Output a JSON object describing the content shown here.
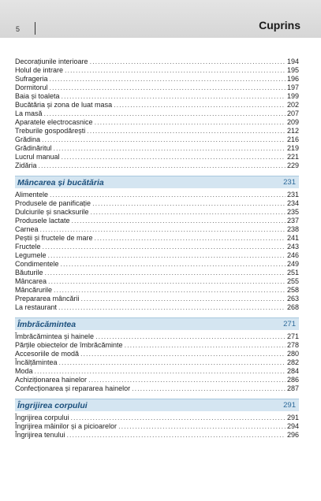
{
  "header": {
    "page_number": "5",
    "title": "Cuprins"
  },
  "groups": [
    {
      "section": null,
      "entries": [
        {
          "label": "Decorațiunile interioare",
          "page": "194"
        },
        {
          "label": "Holul de intrare",
          "page": "195"
        },
        {
          "label": "Sufrageria",
          "page": "196"
        },
        {
          "label": "Dormitorul",
          "page": "197"
        },
        {
          "label": "Baia și toaleta",
          "page": "199"
        },
        {
          "label": "Bucătăria și zona de luat masa",
          "page": "202"
        },
        {
          "label": "La masă",
          "page": "207"
        },
        {
          "label": "Aparatele electrocasnice",
          "page": "209"
        },
        {
          "label": "Treburile gospodărești",
          "page": "212"
        },
        {
          "label": "Grădina",
          "page": "216"
        },
        {
          "label": "Grădinăritul",
          "page": "219"
        },
        {
          "label": "Lucrul manual",
          "page": "221"
        },
        {
          "label": "Zidăria",
          "page": "229"
        }
      ]
    },
    {
      "section": {
        "title": "Mâncarea și bucătăria",
        "page": "231"
      },
      "entries": [
        {
          "label": "Alimentele",
          "page": "231"
        },
        {
          "label": "Produsele de panificație",
          "page": "234"
        },
        {
          "label": "Dulciurile și snacksurile",
          "page": "235"
        },
        {
          "label": "Produsele lactate",
          "page": "237"
        },
        {
          "label": "Carnea",
          "page": "238"
        },
        {
          "label": "Peștii și fructele de mare",
          "page": "241"
        },
        {
          "label": "Fructele",
          "page": "243"
        },
        {
          "label": "Legumele",
          "page": "246"
        },
        {
          "label": "Condimentele",
          "page": "249"
        },
        {
          "label": "Băuturile",
          "page": "251"
        },
        {
          "label": "Mâncarea",
          "page": "255"
        },
        {
          "label": "Mâncărurile",
          "page": "258"
        },
        {
          "label": "Prepararea mâncării",
          "page": "263"
        },
        {
          "label": "La restaurant",
          "page": "268"
        }
      ]
    },
    {
      "section": {
        "title": "Îmbrăcămintea",
        "page": "271"
      },
      "entries": [
        {
          "label": "Îmbrăcămintea și hainele",
          "page": "271"
        },
        {
          "label": "Părțile obiectelor de îmbrăcăminte",
          "page": "278"
        },
        {
          "label": "Accesoriile de modă",
          "page": "280"
        },
        {
          "label": "Încălțămintea",
          "page": "282"
        },
        {
          "label": "Moda",
          "page": "284"
        },
        {
          "label": "Achiziționarea hainelor",
          "page": "286"
        },
        {
          "label": "Confecționarea și repararea hainelor",
          "page": "287"
        }
      ]
    },
    {
      "section": {
        "title": "Îngrijirea corpului",
        "page": "291"
      },
      "entries": [
        {
          "label": "Îngrijirea corpului",
          "page": "291"
        },
        {
          "label": "Îngrijirea mâinilor și a picioarelor",
          "page": "294"
        },
        {
          "label": "Îngrijirea tenului",
          "page": "296"
        }
      ]
    }
  ]
}
